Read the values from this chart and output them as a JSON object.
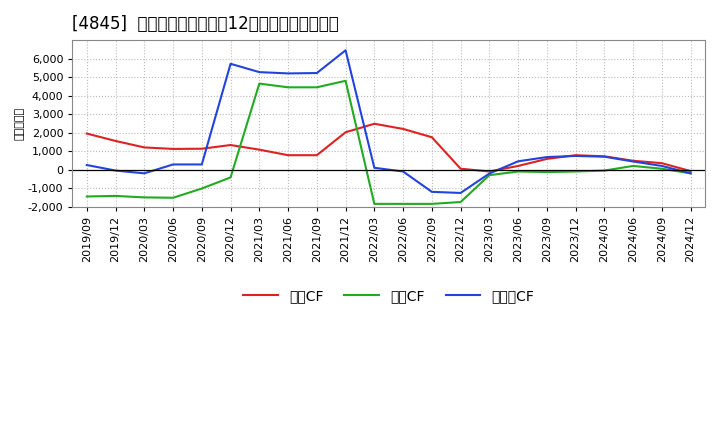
{
  "title": "[4845]  キャッシュフローの12か月移動合計の推移",
  "ylabel": "（百万円）",
  "ylim": [
    -2000,
    7000
  ],
  "yticks": [
    -2000,
    -1000,
    0,
    1000,
    2000,
    3000,
    4000,
    5000,
    6000
  ],
  "background_color": "#ffffff",
  "plot_bg_color": "#ffffff",
  "grid_color": "#bbbbbb",
  "x_labels": [
    "2019/09",
    "2019/12",
    "2020/03",
    "2020/06",
    "2020/09",
    "2020/12",
    "2021/03",
    "2021/06",
    "2021/09",
    "2021/12",
    "2022/03",
    "2022/06",
    "2022/09",
    "2022/12",
    "2023/03",
    "2023/06",
    "2023/09",
    "2023/12",
    "2024/03",
    "2024/06",
    "2024/09",
    "2024/12"
  ],
  "series": {
    "営業CF": {
      "color": "#dd2222",
      "data": [
        1950,
        1550,
        1200,
        1120,
        1130,
        1330,
        1080,
        780,
        780,
        2020,
        2480,
        2200,
        1750,
        50,
        -100,
        200,
        580,
        780,
        720,
        480,
        350,
        -80
      ]
    },
    "投資CF": {
      "color": "#22aa22",
      "data": [
        -1450,
        -1420,
        -1500,
        -1520,
        -1020,
        -420,
        4650,
        4450,
        4450,
        4800,
        -1850,
        -1850,
        -1850,
        -1750,
        -300,
        -100,
        -130,
        -100,
        -50,
        200,
        50,
        -200
      ]
    },
    "フリーCF": {
      "color": "#2244dd",
      "data": [
        250,
        -50,
        -200,
        280,
        280,
        5720,
        5270,
        5200,
        5220,
        6450,
        100,
        -100,
        -1200,
        -1260,
        -210,
        450,
        680,
        740,
        700,
        440,
        200,
        -200
      ]
    }
  },
  "legend_labels": [
    "営業CF",
    "投資CF",
    "フリーCF"
  ],
  "legend_colors": [
    "#dd2222",
    "#22aa22",
    "#2244dd"
  ],
  "title_fontsize": 12,
  "axis_fontsize": 8,
  "legend_fontsize": 10
}
